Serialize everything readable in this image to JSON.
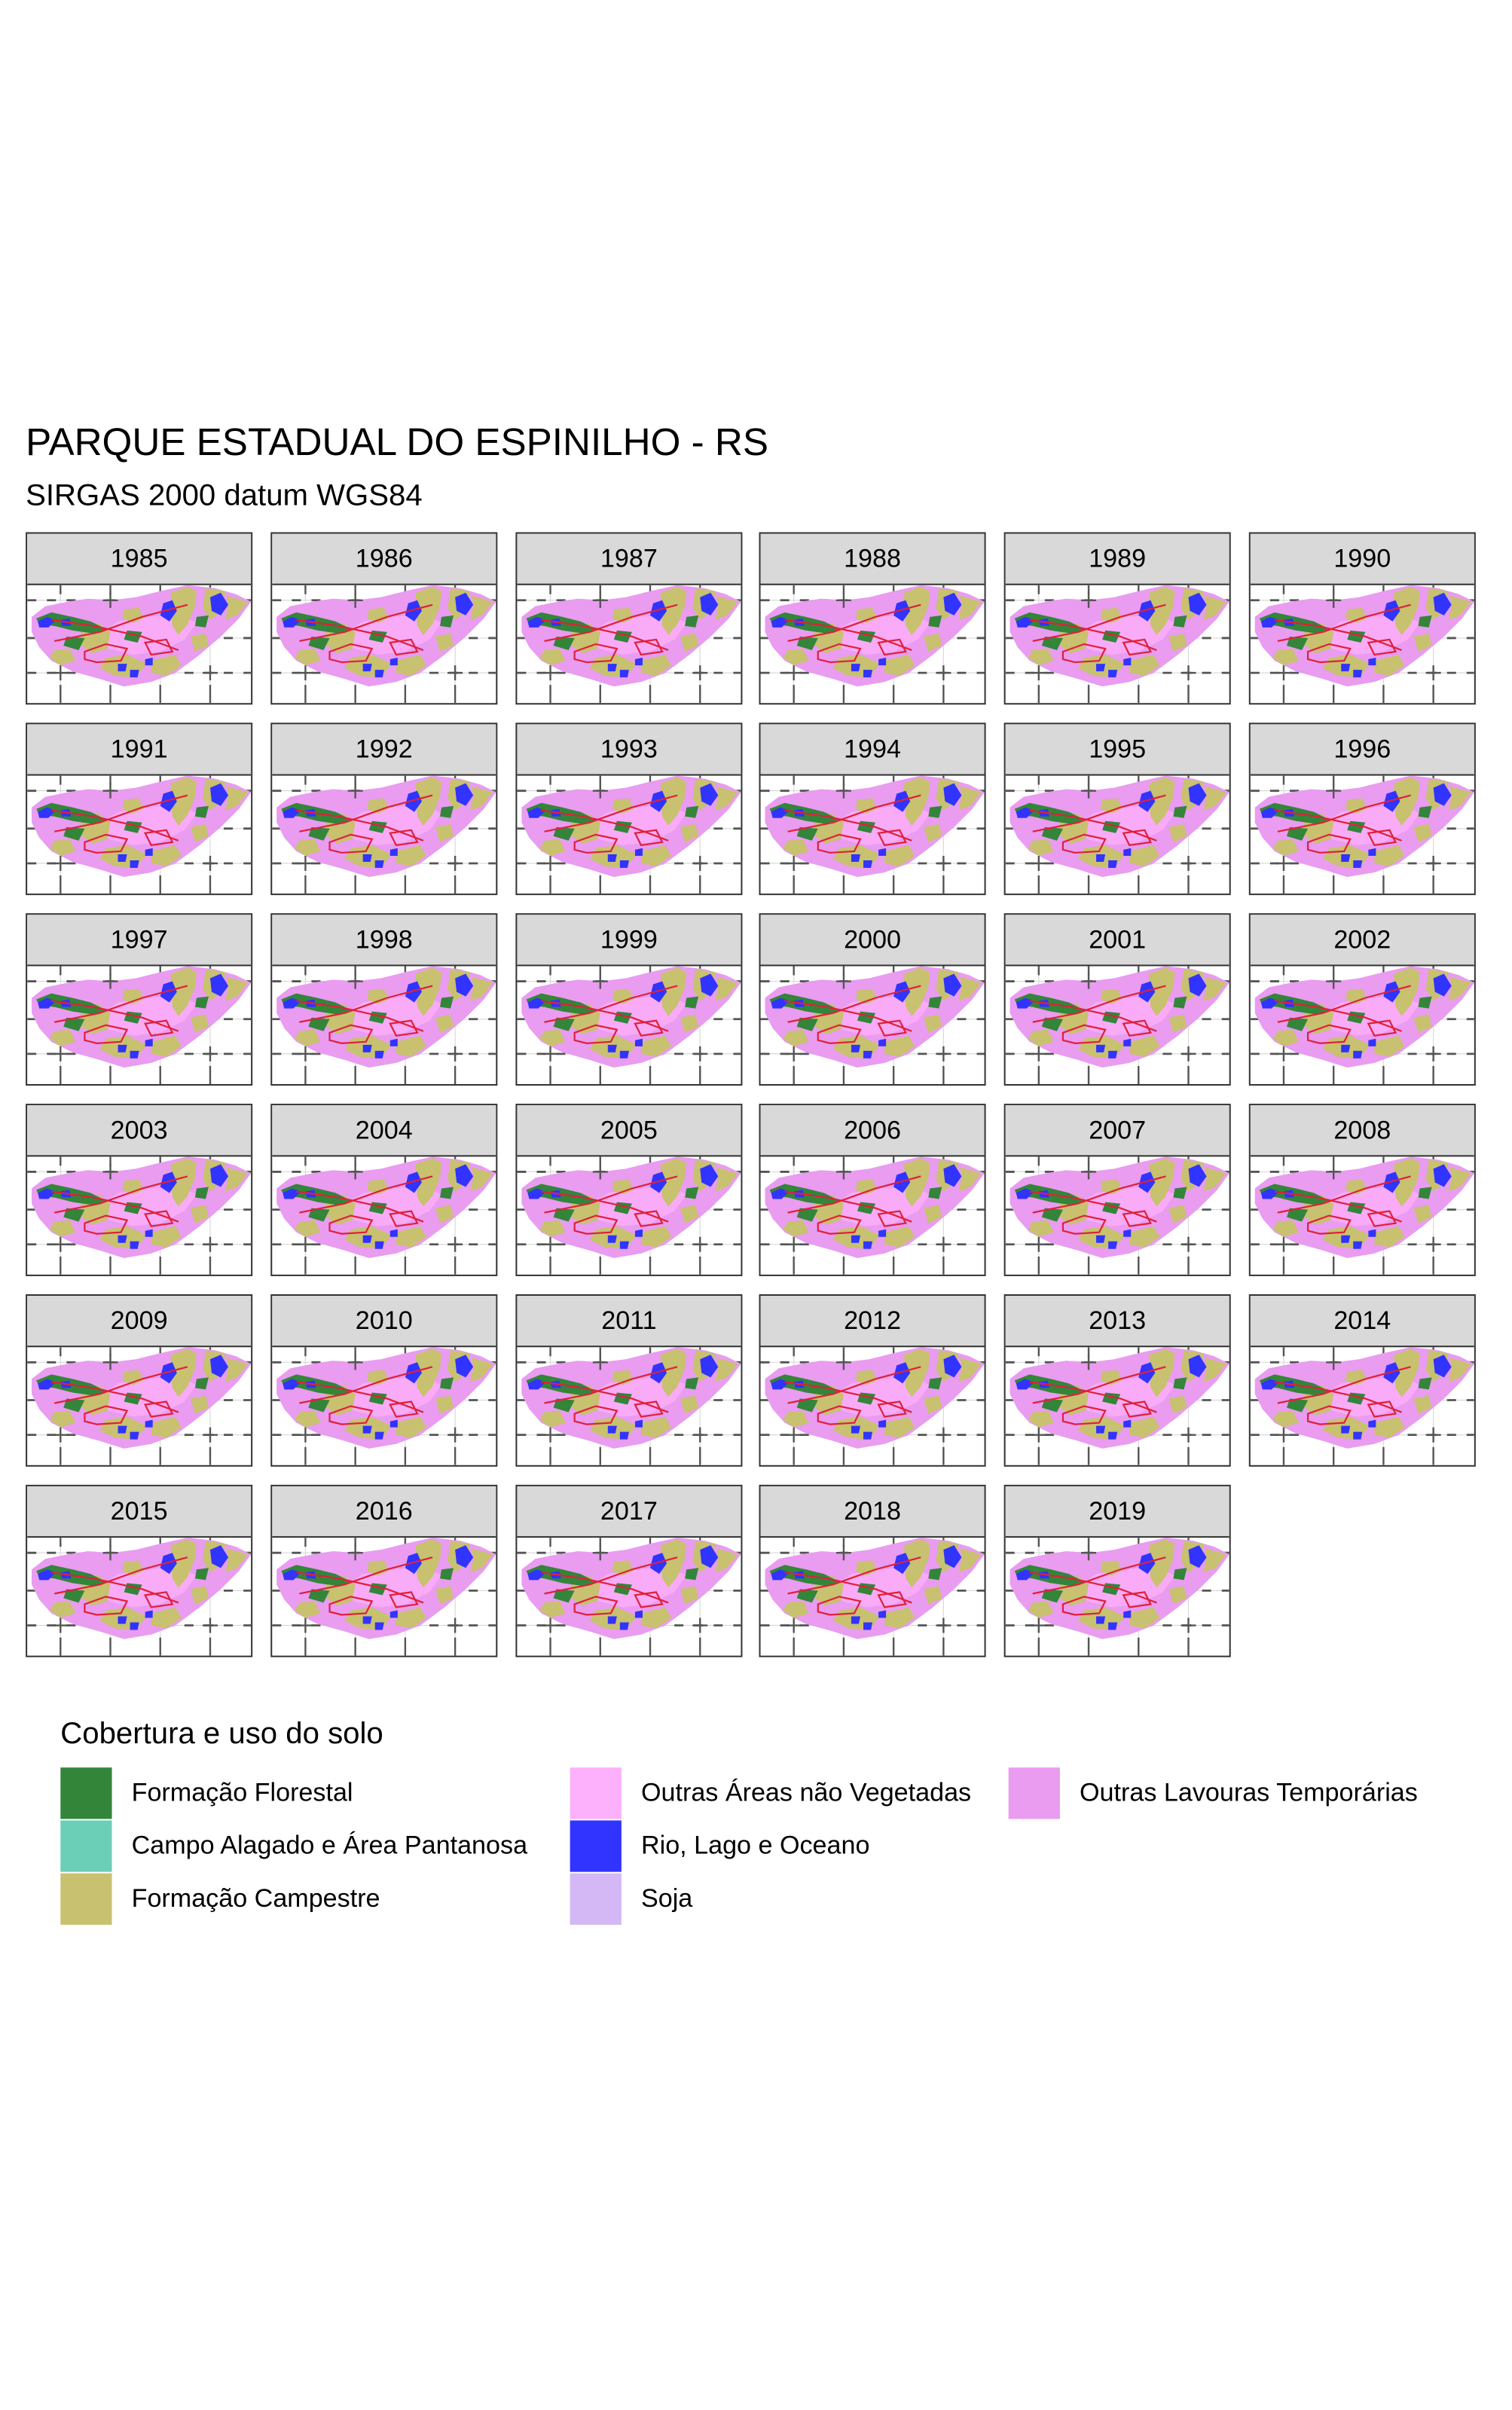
{
  "header": {
    "title": "PARQUE ESTADUAL DO ESPINILHO - RS",
    "subtitle": "SIRGAS 2000 datum WGS84"
  },
  "years": [
    "1985",
    "1986",
    "1987",
    "1988",
    "1989",
    "1990",
    "1991",
    "1992",
    "1993",
    "1994",
    "1995",
    "1996",
    "1997",
    "1998",
    "1999",
    "2000",
    "2001",
    "2002",
    "2003",
    "2004",
    "2005",
    "2006",
    "2007",
    "2008",
    "2009",
    "2010",
    "2011",
    "2012",
    "2013",
    "2014",
    "2015",
    "2016",
    "2017",
    "2018",
    "2019"
  ],
  "legend": {
    "title": "Cobertura e uso do solo",
    "items": [
      {
        "label": "Formação Florestal",
        "color": "#33853a"
      },
      {
        "label": "Campo Alagado e Área Pantanosa",
        "color": "#6acfb6"
      },
      {
        "label": "Formação Campestre",
        "color": "#c8c170"
      },
      {
        "label": "Outras Áreas não Vegetadas",
        "color": "#fdb0fb"
      },
      {
        "label": "Rio, Lago e Oceano",
        "color": "#3133ff"
      },
      {
        "label": "Soja",
        "color": "#d4b7f5"
      },
      {
        "label": "Outras Lavouras Temporárias",
        "color": "#e99cf0"
      }
    ]
  }
}
